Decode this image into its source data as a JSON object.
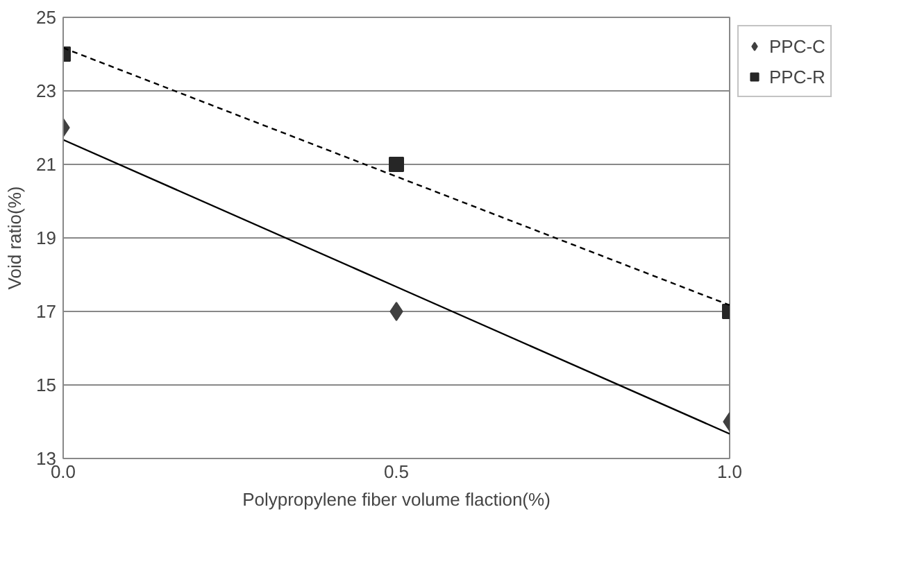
{
  "chart_data": {
    "type": "scatter",
    "xlabel": "Polypropylene fiber volume flaction(%)",
    "ylabel": "Void ratio(%)",
    "x": [
      0.0,
      0.5,
      1.0
    ],
    "series": [
      {
        "name": "PPC-C",
        "color": "#404040",
        "values": [
          22,
          17,
          14
        ],
        "marker": "diamond"
      },
      {
        "name": "PPC-R",
        "color": "#262626",
        "values": [
          24,
          21,
          17
        ],
        "marker": "square"
      },
      {
        "type": "line",
        "color": "#000000",
        "values": [
          21.67,
          17.67,
          13.67
        ],
        "line_style": "solid",
        "marker": "none"
      },
      {
        "type": "line",
        "color": "#000000",
        "values": [
          24.17,
          20.67,
          17.17
        ],
        "line_style": "dashed",
        "marker": "none"
      }
    ],
    "xlim": [
      0.0,
      1.0
    ],
    "xticks": [
      {
        "value": 0.0,
        "label": "0.0"
      },
      {
        "value": 0.5,
        "label": "0.5"
      },
      {
        "value": 1.0,
        "label": "1.0"
      }
    ],
    "ylim": [
      13,
      25
    ],
    "yticks": [
      13,
      15,
      17,
      19,
      21,
      23,
      25
    ],
    "grid": "y",
    "legend": "top right"
  }
}
